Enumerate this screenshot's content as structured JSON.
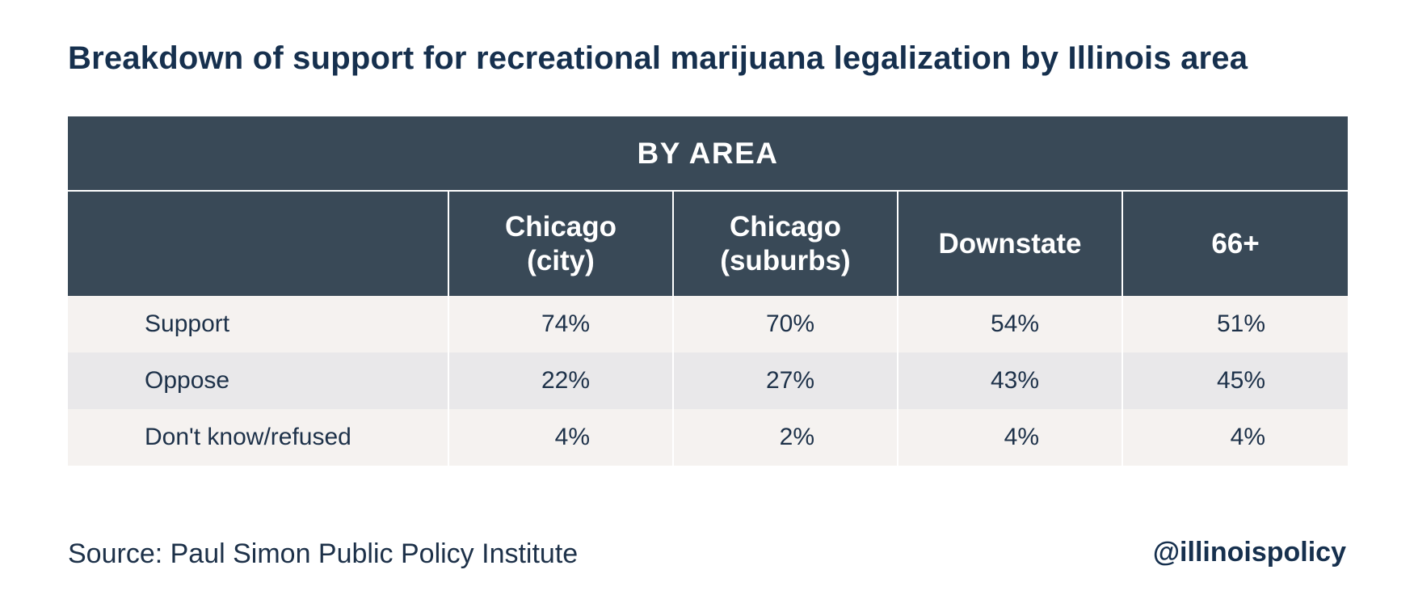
{
  "title": "Breakdown of support for recreational marijuana legalization by Illinois area",
  "chart_data": {
    "type": "table",
    "title": "Breakdown of support for recreational marijuana legalization by Illinois area",
    "group_header": "BY AREA",
    "columns": [
      "",
      "Chicago\n(city)",
      "Chicago\n(suburbs)",
      "Downstate",
      "66+"
    ],
    "rows": [
      {
        "label": "Support",
        "values": [
          "74%",
          "70%",
          "54%",
          "51%"
        ]
      },
      {
        "label": "Oppose",
        "values": [
          "22%",
          "27%",
          "43%",
          "45%"
        ]
      },
      {
        "label": "Don't know/refused",
        "values": [
          "4%",
          "2%",
          "4%",
          "4%"
        ]
      }
    ]
  },
  "footer": {
    "source": "Source: Paul Simon Public Policy Institute",
    "brand": "@illinoispolicy"
  },
  "colors": {
    "header_bg": "#394957",
    "row_light": "#f5f2f0",
    "row_dark": "#e9e8ea",
    "text": "#1d3149"
  }
}
